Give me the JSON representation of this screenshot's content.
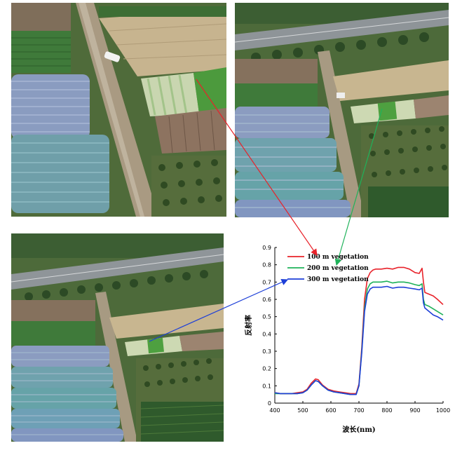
{
  "photos": [
    {
      "name": "aerial-photo-100m"
    },
    {
      "name": "aerial-photo-200m"
    },
    {
      "name": "aerial-photo-300m"
    }
  ],
  "colors": {
    "s100": "#e8222a",
    "s200": "#1fb25a",
    "s300": "#1d3fd8"
  },
  "chart_data": {
    "type": "line",
    "xlabel": "波长(nm)",
    "ylabel": "反射率",
    "xlim": [
      400,
      1000
    ],
    "ylim": [
      0,
      0.9
    ],
    "xticks": [
      400,
      500,
      600,
      700,
      800,
      900,
      1000
    ],
    "yticks": [
      0,
      0.1,
      0.2,
      0.3,
      0.4,
      0.5,
      0.6,
      0.7,
      0.8,
      0.9
    ],
    "legend_position": "top-left",
    "grid": false,
    "series": [
      {
        "name": "100 m vegetation",
        "color": "#e8222a",
        "x": [
          400,
          420,
          440,
          460,
          480,
          500,
          515,
          530,
          545,
          555,
          570,
          590,
          610,
          630,
          650,
          670,
          690,
          700,
          710,
          720,
          730,
          740,
          750,
          760,
          780,
          800,
          820,
          840,
          860,
          880,
          900,
          915,
          925,
          930,
          935,
          950,
          965,
          980,
          1000
        ],
        "y": [
          0.06,
          0.055,
          0.055,
          0.055,
          0.06,
          0.065,
          0.08,
          0.115,
          0.14,
          0.135,
          0.105,
          0.08,
          0.07,
          0.065,
          0.06,
          0.055,
          0.055,
          0.11,
          0.32,
          0.6,
          0.72,
          0.755,
          0.77,
          0.775,
          0.775,
          0.78,
          0.775,
          0.785,
          0.785,
          0.775,
          0.755,
          0.75,
          0.78,
          0.7,
          0.64,
          0.63,
          0.62,
          0.6,
          0.57
        ]
      },
      {
        "name": "200 m vegetation",
        "color": "#1fb25a",
        "x": [
          400,
          420,
          440,
          460,
          480,
          500,
          515,
          530,
          545,
          555,
          570,
          590,
          610,
          630,
          650,
          670,
          690,
          700,
          710,
          720,
          730,
          740,
          750,
          760,
          780,
          800,
          820,
          840,
          860,
          880,
          900,
          915,
          925,
          930,
          935,
          950,
          965,
          980,
          1000
        ],
        "y": [
          0.055,
          0.055,
          0.055,
          0.055,
          0.055,
          0.06,
          0.075,
          0.105,
          0.13,
          0.125,
          0.1,
          0.075,
          0.065,
          0.06,
          0.055,
          0.05,
          0.05,
          0.1,
          0.3,
          0.55,
          0.66,
          0.69,
          0.7,
          0.7,
          0.7,
          0.705,
          0.695,
          0.7,
          0.7,
          0.695,
          0.685,
          0.68,
          0.69,
          0.6,
          0.57,
          0.56,
          0.545,
          0.53,
          0.51
        ]
      },
      {
        "name": "300 m vegetation",
        "color": "#1d3fd8",
        "x": [
          400,
          420,
          440,
          460,
          480,
          500,
          515,
          530,
          545,
          555,
          570,
          590,
          610,
          630,
          650,
          670,
          690,
          700,
          710,
          720,
          730,
          740,
          750,
          760,
          780,
          800,
          820,
          840,
          860,
          880,
          900,
          915,
          925,
          930,
          935,
          950,
          965,
          980,
          1000
        ],
        "y": [
          0.06,
          0.055,
          0.055,
          0.055,
          0.055,
          0.06,
          0.075,
          0.105,
          0.13,
          0.125,
          0.1,
          0.075,
          0.065,
          0.06,
          0.055,
          0.05,
          0.05,
          0.1,
          0.29,
          0.53,
          0.63,
          0.66,
          0.67,
          0.67,
          0.67,
          0.675,
          0.665,
          0.67,
          0.67,
          0.665,
          0.66,
          0.655,
          0.665,
          0.58,
          0.55,
          0.53,
          0.51,
          0.5,
          0.48
        ]
      }
    ]
  }
}
